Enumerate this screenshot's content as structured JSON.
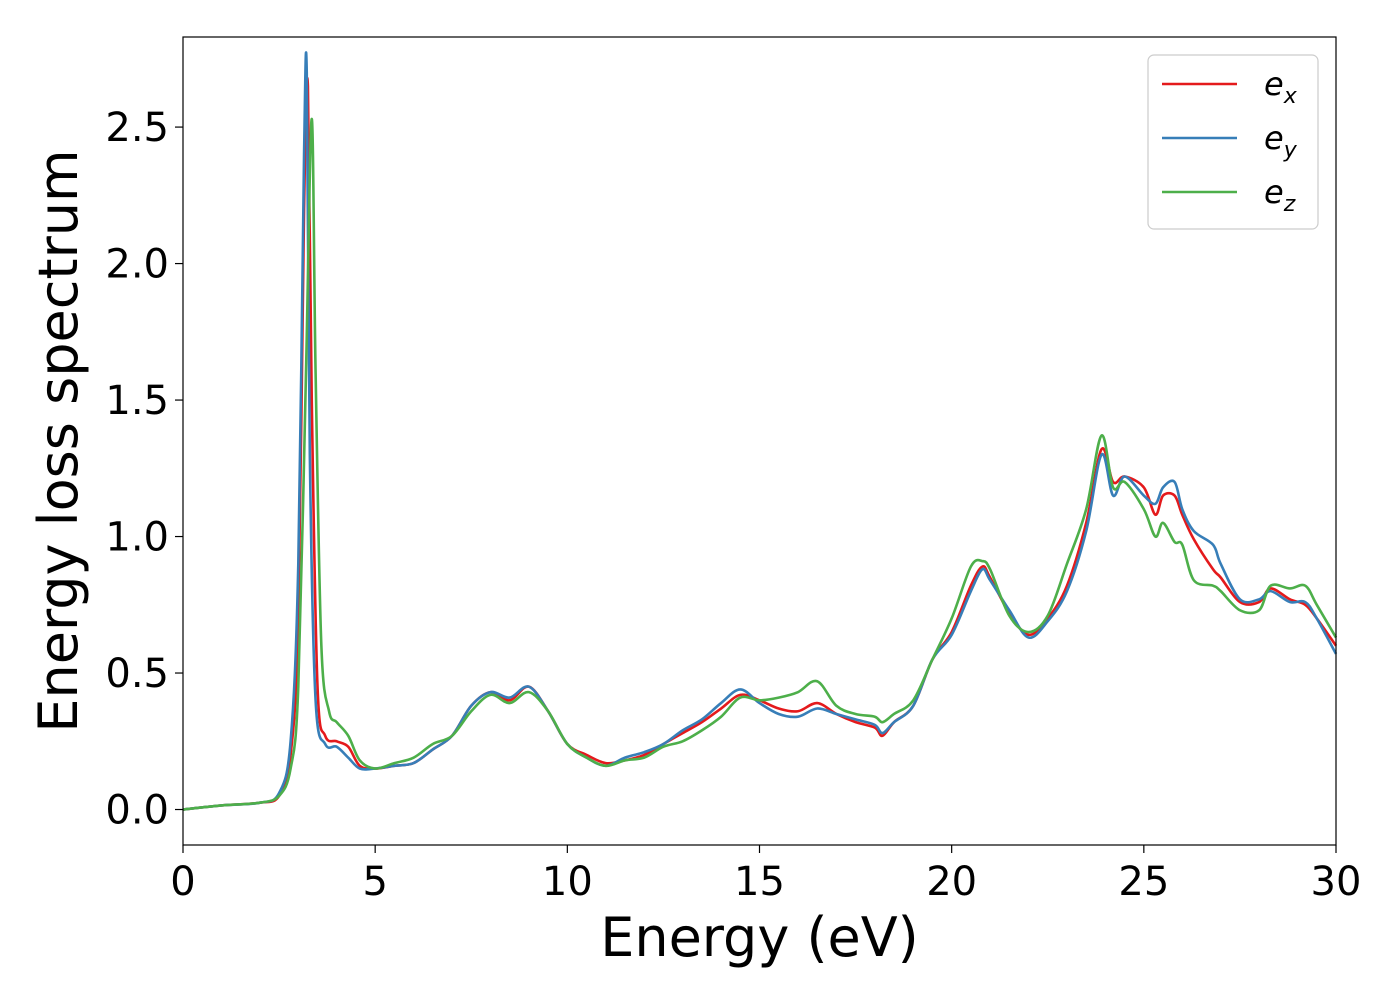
{
  "chart_data": {
    "type": "line",
    "xlabel": "Energy (eV)",
    "ylabel": "Energy loss spectrum",
    "xlim": [
      0,
      30
    ],
    "ylim": [
      -0.13,
      2.83
    ],
    "xticks": [
      "0",
      "5",
      "10",
      "15",
      "20",
      "25",
      "30"
    ],
    "yticks": [
      "0.0",
      "0.5",
      "1.0",
      "1.5",
      "2.0",
      "2.5"
    ],
    "grid": false,
    "legend_position": "top-right",
    "series": [
      {
        "name": "e",
        "sub": "x",
        "color": "#e41a1c",
        "points": [
          [
            0,
            0
          ],
          [
            1,
            0.015
          ],
          [
            2,
            0.025
          ],
          [
            2.5,
            0.05
          ],
          [
            2.8,
            0.2
          ],
          [
            3.0,
            0.7
          ],
          [
            3.15,
            2.2
          ],
          [
            3.25,
            2.65
          ],
          [
            3.35,
            1.5
          ],
          [
            3.5,
            0.45
          ],
          [
            3.7,
            0.27
          ],
          [
            4.0,
            0.25
          ],
          [
            4.3,
            0.23
          ],
          [
            4.6,
            0.16
          ],
          [
            5.0,
            0.15
          ],
          [
            5.5,
            0.16
          ],
          [
            6.0,
            0.17
          ],
          [
            6.5,
            0.22
          ],
          [
            7.0,
            0.27
          ],
          [
            7.5,
            0.38
          ],
          [
            8.0,
            0.43
          ],
          [
            8.5,
            0.4
          ],
          [
            9.0,
            0.45
          ],
          [
            9.5,
            0.36
          ],
          [
            10.0,
            0.24
          ],
          [
            10.5,
            0.2
          ],
          [
            11.0,
            0.17
          ],
          [
            11.5,
            0.18
          ],
          [
            12.0,
            0.2
          ],
          [
            12.5,
            0.24
          ],
          [
            13.0,
            0.28
          ],
          [
            13.5,
            0.32
          ],
          [
            14.0,
            0.37
          ],
          [
            14.5,
            0.42
          ],
          [
            15.0,
            0.4
          ],
          [
            15.5,
            0.37
          ],
          [
            16.0,
            0.36
          ],
          [
            16.5,
            0.39
          ],
          [
            17.0,
            0.35
          ],
          [
            17.5,
            0.32
          ],
          [
            18.0,
            0.3
          ],
          [
            18.2,
            0.27
          ],
          [
            18.5,
            0.32
          ],
          [
            19.0,
            0.38
          ],
          [
            19.5,
            0.55
          ],
          [
            20.0,
            0.65
          ],
          [
            20.5,
            0.82
          ],
          [
            20.8,
            0.89
          ],
          [
            21.0,
            0.85
          ],
          [
            21.5,
            0.72
          ],
          [
            22.0,
            0.64
          ],
          [
            22.5,
            0.7
          ],
          [
            23.0,
            0.82
          ],
          [
            23.5,
            1.05
          ],
          [
            23.9,
            1.32
          ],
          [
            24.2,
            1.2
          ],
          [
            24.5,
            1.22
          ],
          [
            25.0,
            1.18
          ],
          [
            25.3,
            1.08
          ],
          [
            25.5,
            1.15
          ],
          [
            25.8,
            1.15
          ],
          [
            26.0,
            1.08
          ],
          [
            26.3,
            0.99
          ],
          [
            26.8,
            0.88
          ],
          [
            27.0,
            0.85
          ],
          [
            27.5,
            0.76
          ],
          [
            28.0,
            0.76
          ],
          [
            28.3,
            0.81
          ],
          [
            28.8,
            0.77
          ],
          [
            29.2,
            0.75
          ],
          [
            29.5,
            0.7
          ],
          [
            30,
            0.6
          ]
        ]
      },
      {
        "name": "e",
        "sub": "y",
        "color": "#377eb8",
        "points": [
          [
            0,
            0
          ],
          [
            1,
            0.015
          ],
          [
            2,
            0.025
          ],
          [
            2.5,
            0.06
          ],
          [
            2.8,
            0.25
          ],
          [
            3.0,
            0.9
          ],
          [
            3.15,
            2.4
          ],
          [
            3.22,
            2.7
          ],
          [
            3.3,
            1.3
          ],
          [
            3.45,
            0.4
          ],
          [
            3.7,
            0.24
          ],
          [
            4.0,
            0.23
          ],
          [
            4.3,
            0.19
          ],
          [
            4.6,
            0.15
          ],
          [
            5.0,
            0.15
          ],
          [
            5.5,
            0.16
          ],
          [
            6.0,
            0.17
          ],
          [
            6.5,
            0.22
          ],
          [
            7.0,
            0.27
          ],
          [
            7.5,
            0.38
          ],
          [
            8.0,
            0.43
          ],
          [
            8.5,
            0.41
          ],
          [
            9.0,
            0.45
          ],
          [
            9.5,
            0.36
          ],
          [
            10.0,
            0.24
          ],
          [
            10.5,
            0.19
          ],
          [
            11.0,
            0.16
          ],
          [
            11.5,
            0.19
          ],
          [
            12.0,
            0.21
          ],
          [
            12.5,
            0.24
          ],
          [
            13.0,
            0.29
          ],
          [
            13.5,
            0.33
          ],
          [
            14.0,
            0.39
          ],
          [
            14.5,
            0.44
          ],
          [
            15.0,
            0.39
          ],
          [
            15.5,
            0.35
          ],
          [
            16.0,
            0.34
          ],
          [
            16.5,
            0.37
          ],
          [
            17.0,
            0.35
          ],
          [
            17.5,
            0.33
          ],
          [
            18.0,
            0.31
          ],
          [
            18.2,
            0.28
          ],
          [
            18.5,
            0.32
          ],
          [
            19.0,
            0.38
          ],
          [
            19.5,
            0.55
          ],
          [
            20.0,
            0.64
          ],
          [
            20.5,
            0.8
          ],
          [
            20.8,
            0.88
          ],
          [
            21.0,
            0.84
          ],
          [
            21.5,
            0.73
          ],
          [
            22.0,
            0.63
          ],
          [
            22.5,
            0.69
          ],
          [
            23.0,
            0.8
          ],
          [
            23.5,
            1.02
          ],
          [
            23.9,
            1.3
          ],
          [
            24.2,
            1.15
          ],
          [
            24.5,
            1.22
          ],
          [
            25.0,
            1.15
          ],
          [
            25.3,
            1.12
          ],
          [
            25.5,
            1.18
          ],
          [
            25.8,
            1.2
          ],
          [
            26.0,
            1.1
          ],
          [
            26.3,
            1.02
          ],
          [
            26.8,
            0.97
          ],
          [
            27.0,
            0.9
          ],
          [
            27.5,
            0.77
          ],
          [
            28.0,
            0.77
          ],
          [
            28.3,
            0.8
          ],
          [
            28.8,
            0.76
          ],
          [
            29.2,
            0.76
          ],
          [
            29.5,
            0.7
          ],
          [
            30,
            0.57
          ]
        ]
      },
      {
        "name": "e",
        "sub": "z",
        "color": "#4daf4a",
        "points": [
          [
            0,
            0
          ],
          [
            1,
            0.015
          ],
          [
            2,
            0.025
          ],
          [
            2.5,
            0.05
          ],
          [
            2.8,
            0.15
          ],
          [
            3.0,
            0.45
          ],
          [
            3.2,
            1.6
          ],
          [
            3.35,
            2.53
          ],
          [
            3.45,
            1.6
          ],
          [
            3.6,
            0.6
          ],
          [
            3.8,
            0.36
          ],
          [
            4.0,
            0.32
          ],
          [
            4.3,
            0.27
          ],
          [
            4.6,
            0.18
          ],
          [
            5.0,
            0.15
          ],
          [
            5.5,
            0.17
          ],
          [
            6.0,
            0.19
          ],
          [
            6.5,
            0.24
          ],
          [
            7.0,
            0.27
          ],
          [
            7.5,
            0.36
          ],
          [
            8.0,
            0.42
          ],
          [
            8.5,
            0.39
          ],
          [
            9.0,
            0.43
          ],
          [
            9.5,
            0.36
          ],
          [
            10.0,
            0.24
          ],
          [
            10.5,
            0.19
          ],
          [
            11.0,
            0.16
          ],
          [
            11.5,
            0.18
          ],
          [
            12.0,
            0.19
          ],
          [
            12.5,
            0.23
          ],
          [
            13.0,
            0.25
          ],
          [
            13.5,
            0.29
          ],
          [
            14.0,
            0.34
          ],
          [
            14.5,
            0.41
          ],
          [
            15.0,
            0.4
          ],
          [
            15.5,
            0.41
          ],
          [
            16.0,
            0.43
          ],
          [
            16.5,
            0.47
          ],
          [
            17.0,
            0.38
          ],
          [
            17.5,
            0.35
          ],
          [
            18.0,
            0.34
          ],
          [
            18.2,
            0.32
          ],
          [
            18.5,
            0.35
          ],
          [
            19.0,
            0.4
          ],
          [
            19.5,
            0.55
          ],
          [
            20.0,
            0.7
          ],
          [
            20.5,
            0.89
          ],
          [
            20.8,
            0.91
          ],
          [
            21.0,
            0.88
          ],
          [
            21.5,
            0.71
          ],
          [
            22.0,
            0.65
          ],
          [
            22.5,
            0.71
          ],
          [
            23.0,
            0.9
          ],
          [
            23.5,
            1.1
          ],
          [
            23.9,
            1.37
          ],
          [
            24.2,
            1.18
          ],
          [
            24.5,
            1.2
          ],
          [
            25.0,
            1.1
          ],
          [
            25.3,
            1.0
          ],
          [
            25.5,
            1.05
          ],
          [
            25.8,
            0.98
          ],
          [
            26.0,
            0.97
          ],
          [
            26.3,
            0.84
          ],
          [
            26.8,
            0.82
          ],
          [
            27.0,
            0.8
          ],
          [
            27.5,
            0.73
          ],
          [
            28.0,
            0.73
          ],
          [
            28.3,
            0.82
          ],
          [
            28.8,
            0.81
          ],
          [
            29.2,
            0.82
          ],
          [
            29.5,
            0.75
          ],
          [
            30,
            0.63
          ]
        ]
      }
    ]
  }
}
